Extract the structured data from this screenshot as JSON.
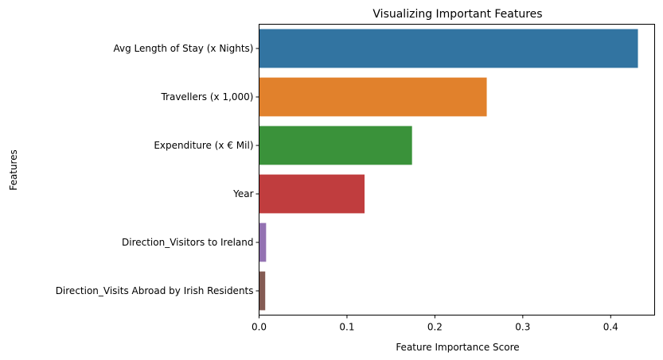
{
  "chart_data": {
    "type": "bar",
    "orientation": "horizontal",
    "title": "Visualizing Important Features",
    "xlabel": "Feature Importance Score",
    "ylabel": "Features",
    "xlim": [
      0,
      0.45
    ],
    "xticks": [
      0.0,
      0.1,
      0.2,
      0.3,
      0.4
    ],
    "xtick_labels": [
      "0.0",
      "0.1",
      "0.2",
      "0.3",
      "0.4"
    ],
    "grid": false,
    "categories": [
      "Avg Length of Stay (x Nights)",
      "Travellers (x 1,000)",
      "Expenditure (x € Mil)",
      "Year",
      "Direction_Visitors to Ireland",
      "Direction_Visits Abroad by Irish Residents"
    ],
    "values": [
      0.431,
      0.259,
      0.174,
      0.12,
      0.008,
      0.007
    ],
    "colors": [
      "#3274a1",
      "#e1812c",
      "#3a923a",
      "#c03d3e",
      "#9372b2",
      "#845b53"
    ]
  }
}
